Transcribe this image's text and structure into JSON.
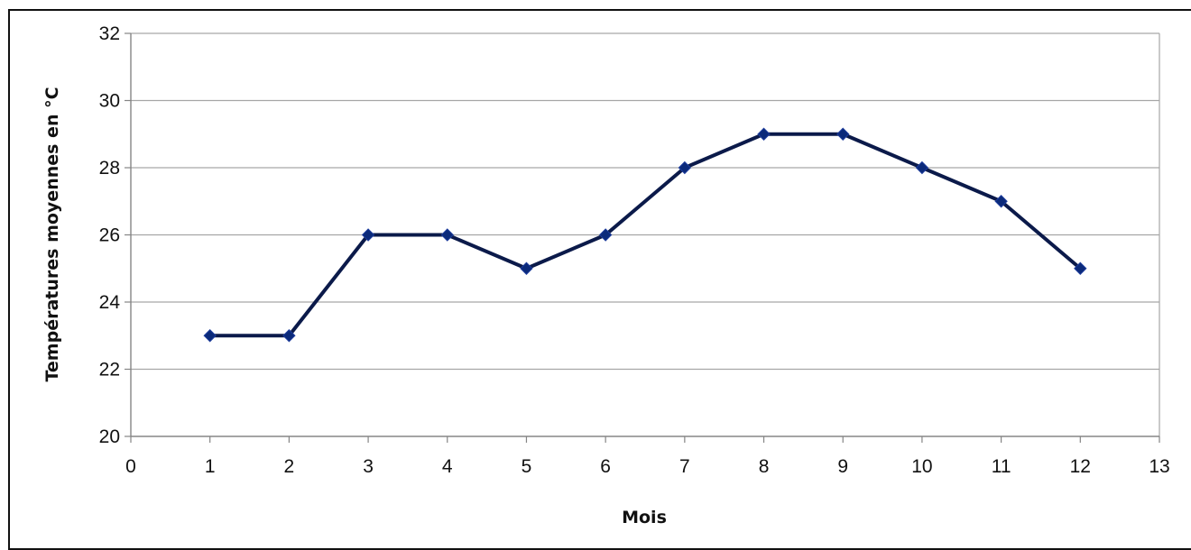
{
  "chart_data": {
    "type": "line",
    "title": "",
    "xlabel": "Mois",
    "ylabel": "Températures moyennes en °C",
    "x": [
      1,
      2,
      3,
      4,
      5,
      6,
      7,
      8,
      9,
      10,
      11,
      12
    ],
    "series": [
      {
        "values": [
          23,
          23,
          26,
          26,
          25,
          26,
          28,
          29,
          29,
          28,
          27,
          25
        ]
      }
    ],
    "xlim": [
      0,
      13
    ],
    "ylim": [
      20,
      32
    ],
    "xticks": [
      "0",
      "1",
      "2",
      "3",
      "4",
      "5",
      "6",
      "7",
      "8",
      "9",
      "10",
      "11",
      "12",
      "13"
    ],
    "yticks": [
      "20",
      "22",
      "24",
      "26",
      "28",
      "30",
      "32"
    ],
    "grid": "horizontal",
    "legend": "none",
    "colors": {
      "line": "#0b1a4a",
      "marker": "#0b2a7a",
      "grid": "#a6a6a6",
      "axis": "#858585",
      "frame": "#111111"
    }
  }
}
